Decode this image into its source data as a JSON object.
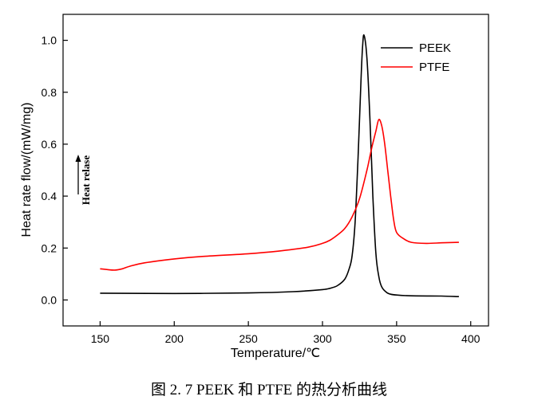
{
  "caption": "图 2. 7 PEEK 和 PTFE 的热分析曲线",
  "chart_data": {
    "type": "line",
    "xlabel": "Temperature/℃",
    "ylabel": "Heat rate flow/(mW/mg)",
    "xlim": [
      125,
      412
    ],
    "ylim": [
      -0.1,
      1.1
    ],
    "xticks": [
      150,
      200,
      250,
      300,
      350,
      400
    ],
    "yticks": [
      0.0,
      0.2,
      0.4,
      0.6,
      0.8,
      1.0
    ],
    "xtick_labels": [
      "150",
      "200",
      "250",
      "300",
      "350",
      "400"
    ],
    "ytick_labels": [
      "0.0",
      "0.2",
      "0.4",
      "0.6",
      "0.8",
      "1.0"
    ],
    "grid": false,
    "legend_position": "top-right",
    "annotation": "Heat relase",
    "series": [
      {
        "name": "PEEK",
        "color": "#000000",
        "x": [
          150,
          200,
          250,
          280,
          300,
          305,
          310,
          315,
          318,
          320,
          322,
          324,
          326,
          327,
          328,
          330,
          332,
          334,
          336,
          338,
          340,
          343,
          346,
          350,
          360,
          380,
          392
        ],
        "y": [
          0.026,
          0.025,
          0.027,
          0.032,
          0.04,
          0.045,
          0.055,
          0.08,
          0.12,
          0.17,
          0.3,
          0.55,
          0.85,
          0.97,
          1.02,
          0.93,
          0.7,
          0.4,
          0.18,
          0.09,
          0.05,
          0.03,
          0.022,
          0.019,
          0.016,
          0.015,
          0.013
        ]
      },
      {
        "name": "PTFE",
        "color": "#ff0000",
        "x": [
          150,
          155,
          160,
          165,
          170,
          180,
          200,
          220,
          250,
          270,
          290,
          300,
          305,
          310,
          315,
          320,
          325,
          330,
          333,
          336,
          338,
          340,
          342,
          344,
          346,
          348,
          350,
          355,
          360,
          370,
          380,
          392
        ],
        "y": [
          0.12,
          0.117,
          0.115,
          0.12,
          0.13,
          0.143,
          0.158,
          0.168,
          0.178,
          0.188,
          0.203,
          0.218,
          0.23,
          0.25,
          0.275,
          0.32,
          0.39,
          0.5,
          0.58,
          0.65,
          0.695,
          0.67,
          0.6,
          0.5,
          0.4,
          0.31,
          0.26,
          0.235,
          0.222,
          0.218,
          0.22,
          0.222
        ]
      }
    ]
  }
}
